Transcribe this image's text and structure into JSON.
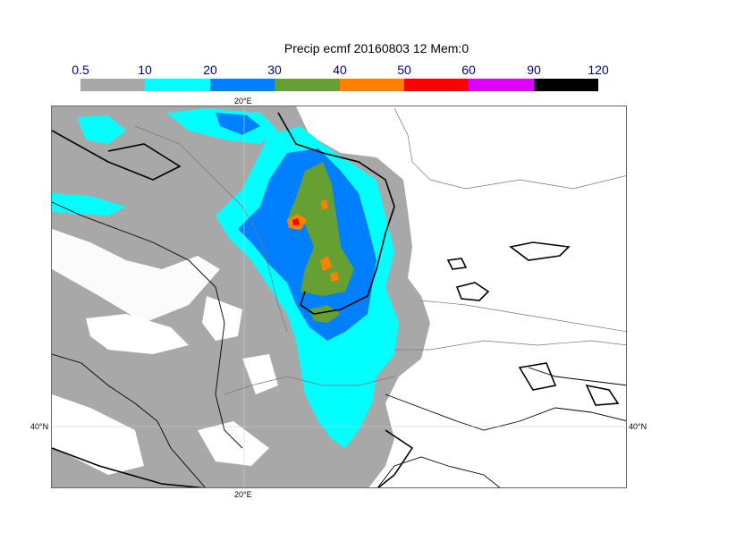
{
  "title": "Precip ecmf 20160803 12 Mem:0",
  "colorbar": {
    "ticks": [
      "0.5",
      "10",
      "20",
      "30",
      "40",
      "50",
      "60",
      "90",
      "120"
    ],
    "colors": [
      "#a8a8a8",
      "#00ffff",
      "#0080ff",
      "#66a033",
      "#ff8000",
      "#ff0000",
      "#dd00ff",
      "#000000"
    ]
  },
  "map": {
    "lon_label_top": "20°E",
    "lon_label_bottom": "20°E",
    "lat_label_left": "40°N",
    "lat_label_right": "40°N"
  }
}
